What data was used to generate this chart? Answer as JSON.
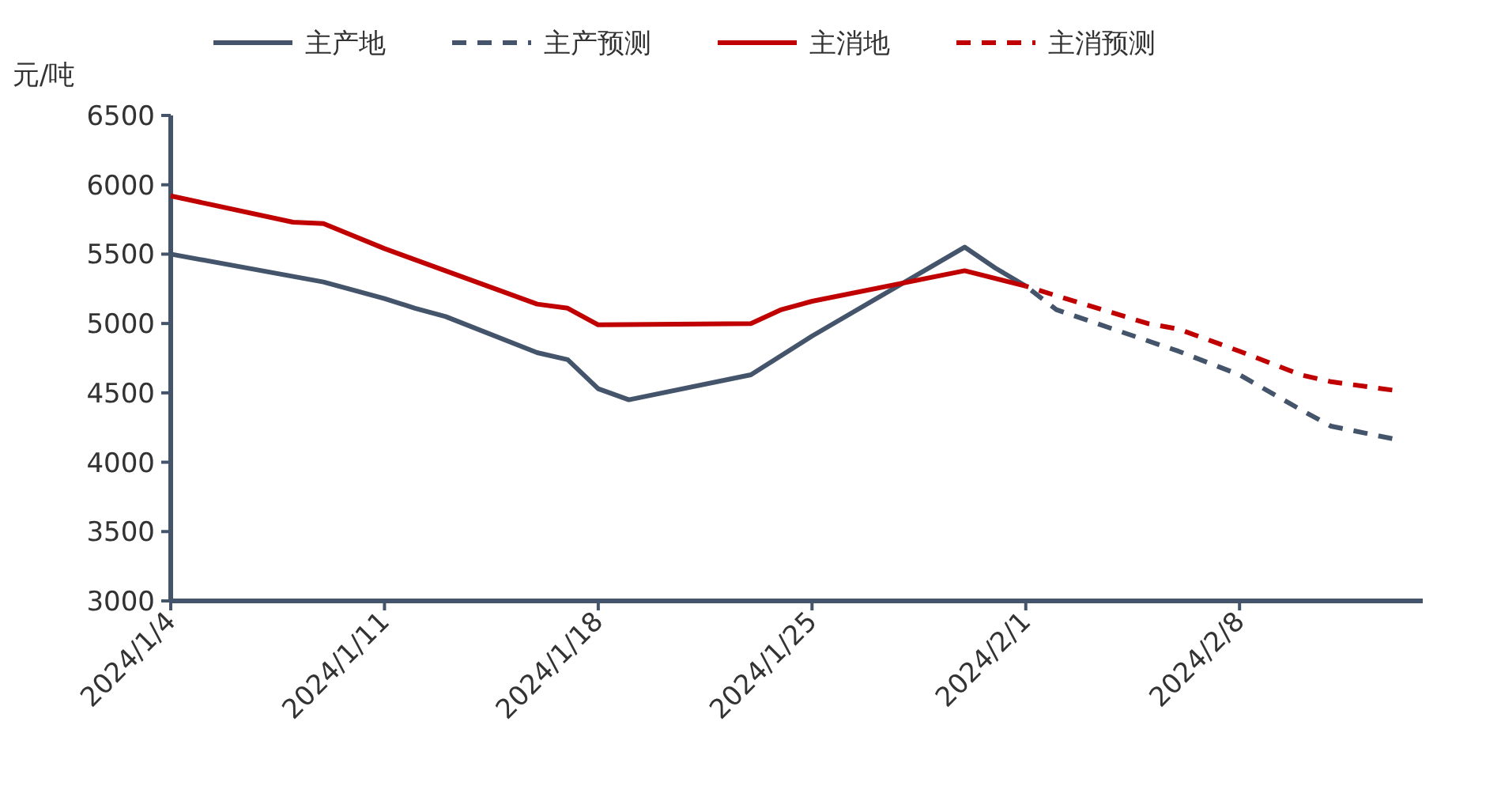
{
  "chart_data": {
    "type": "line",
    "ylabel": "元/吨",
    "legend": "top",
    "marker": "none",
    "grid": false,
    "xlim": [
      "2024-01-04",
      "2024-02-14"
    ],
    "xticks": [
      {
        "value": "2024-01-04",
        "label": "2024/1/4"
      },
      {
        "value": "2024-01-11",
        "label": "2024/1/11"
      },
      {
        "value": "2024-01-18",
        "label": "2024/1/18"
      },
      {
        "value": "2024-01-25",
        "label": "2024/1/25"
      },
      {
        "value": "2024-02-01",
        "label": "2024/2/1"
      },
      {
        "value": "2024-02-08",
        "label": "2024/2/8"
      }
    ],
    "ylim": [
      3000,
      6500
    ],
    "yticks": [
      3000,
      3500,
      4000,
      4500,
      5000,
      5500,
      6000,
      6500
    ],
    "series": [
      {
        "name": "主产地",
        "color": "#44546a",
        "line_style": "solid",
        "x": [
          "2024-01-04",
          "2024-01-09",
          "2024-01-11",
          "2024-01-12",
          "2024-01-13",
          "2024-01-16",
          "2024-01-17",
          "2024-01-18",
          "2024-01-19",
          "2024-01-23",
          "2024-01-25",
          "2024-01-30",
          "2024-01-31",
          "2024-02-01"
        ],
        "values": [
          5500,
          5300,
          5180,
          5110,
          5050,
          4790,
          4740,
          4530,
          4450,
          4630,
          4910,
          5550,
          5400,
          5270
        ]
      },
      {
        "name": "主产预测",
        "color": "#44546a",
        "line_style": "dashed",
        "x": [
          "2024-02-01",
          "2024-02-02",
          "2024-02-04",
          "2024-02-06",
          "2024-02-08",
          "2024-02-10",
          "2024-02-11",
          "2024-02-13"
        ],
        "values": [
          5270,
          5100,
          4950,
          4800,
          4630,
          4380,
          4260,
          4170
        ]
      },
      {
        "name": "主消地",
        "color": "#c00000",
        "line_style": "solid",
        "x": [
          "2024-01-04",
          "2024-01-08",
          "2024-01-09",
          "2024-01-11",
          "2024-01-16",
          "2024-01-17",
          "2024-01-18",
          "2024-01-23",
          "2024-01-24",
          "2024-01-25",
          "2024-01-30",
          "2024-02-01"
        ],
        "values": [
          5920,
          5730,
          5720,
          5540,
          5140,
          5110,
          4990,
          5000,
          5100,
          5160,
          5380,
          5270
        ]
      },
      {
        "name": "主消预测",
        "color": "#c00000",
        "line_style": "dashed",
        "x": [
          "2024-02-01",
          "2024-02-02",
          "2024-02-05",
          "2024-02-06",
          "2024-02-08",
          "2024-02-10",
          "2024-02-11",
          "2024-02-13"
        ],
        "values": [
          5270,
          5200,
          5000,
          4960,
          4800,
          4630,
          4580,
          4520
        ]
      }
    ]
  }
}
